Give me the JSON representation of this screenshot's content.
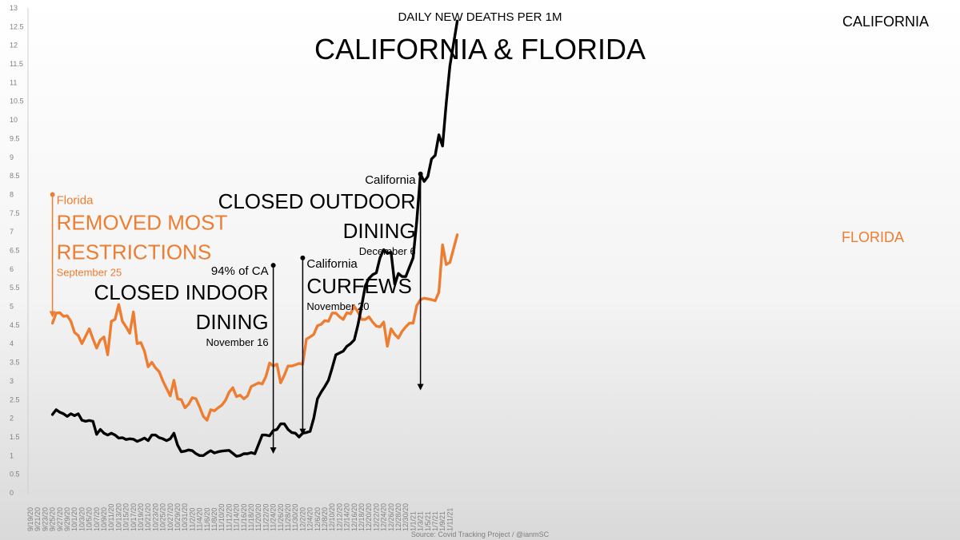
{
  "chart_data": {
    "type": "line",
    "title": "CALIFORNIA & FLORIDA",
    "subtitle": "DAILY NEW DEATHS PER 1M",
    "source": "Source: Covid Tracking Project / @ianmSC",
    "ylim": [
      0,
      13
    ],
    "y_ticks": [
      "0",
      "0.5",
      "1",
      "1.5",
      "2",
      "2.5",
      "3",
      "3.5",
      "4",
      "4.5",
      "5",
      "5.5",
      "6",
      "6.5",
      "7",
      "7.5",
      "8",
      "8.5",
      "9",
      "9.5",
      "10",
      "10.5",
      "11",
      "11.5",
      "12",
      "12.5",
      "13"
    ],
    "x_ticks": [
      "9/19/20",
      "9/21/20",
      "9/23/20",
      "9/25/20",
      "9/27/20",
      "9/29/20",
      "10/1/20",
      "10/3/20",
      "10/5/20",
      "10/7/20",
      "10/9/20",
      "10/11/20",
      "10/13/20",
      "10/15/20",
      "10/17/20",
      "10/19/20",
      "10/21/20",
      "10/23/20",
      "10/25/20",
      "10/27/20",
      "10/29/20",
      "10/31/20",
      "11/2/20",
      "11/4/20",
      "11/6/20",
      "11/8/20",
      "11/10/20",
      "11/12/20",
      "11/14/20",
      "11/16/20",
      "11/18/20",
      "11/20/20",
      "11/22/20",
      "11/24/20",
      "11/26/20",
      "11/28/20",
      "11/30/20",
      "12/2/20",
      "12/4/20",
      "12/6/20",
      "12/8/20",
      "12/10/20",
      "12/12/20",
      "12/14/20",
      "12/16/20",
      "12/18/20",
      "12/20/20",
      "12/22/20",
      "12/24/20",
      "12/26/20",
      "12/28/20",
      "12/30/20",
      "1/1/21",
      "1/3/21",
      "1/5/21",
      "1/7/21",
      "1/9/21",
      "1/11/21"
    ],
    "colors": {
      "california": "#000000",
      "florida": "#ed7d31"
    },
    "series": [
      {
        "name": "CALIFORNIA",
        "start_index": 6,
        "values": [
          2.1,
          2.23,
          2.16,
          2.12,
          2.05,
          2.12,
          2.07,
          2.12,
          1.95,
          1.92,
          1.94,
          1.92,
          1.57,
          1.7,
          1.6,
          1.55,
          1.6,
          1.55,
          1.47,
          1.48,
          1.43,
          1.45,
          1.44,
          1.38,
          1.42,
          1.47,
          1.4,
          1.55,
          1.55,
          1.48,
          1.45,
          1.4,
          1.45,
          1.6,
          1.28,
          1.1,
          1.12,
          1.15,
          1.13,
          1.05,
          1.0,
          1.0,
          1.07,
          1.13,
          1.07,
          1.1,
          1.12,
          1.13,
          1.14,
          1.06,
          0.98,
          1.0,
          1.05,
          1.05,
          1.08,
          1.05,
          1.3,
          1.55,
          1.55,
          1.53,
          1.67,
          1.7,
          1.85,
          1.85,
          1.7,
          1.62,
          1.6,
          1.5,
          1.6,
          1.62,
          1.65,
          2.0,
          2.52,
          2.7,
          2.85,
          3.02,
          3.35,
          3.7,
          3.75,
          3.8,
          3.93,
          4.0,
          4.1,
          4.5,
          5.0,
          5.55,
          5.75,
          5.85,
          5.9,
          6.3,
          6.52,
          6.42,
          6.45,
          5.6,
          5.88,
          5.8,
          5.8,
          6.05,
          6.3,
          7.3,
          8.55,
          8.35,
          8.48,
          8.95,
          9.05,
          9.6,
          9.3,
          10.45,
          11.45,
          12.05,
          12.65
        ]
      },
      {
        "name": "FLORIDA",
        "start_index": 6,
        "values": [
          4.55,
          4.82,
          4.83,
          4.73,
          4.75,
          4.6,
          4.3,
          4.22,
          4.0,
          4.2,
          4.4,
          4.13,
          3.88,
          4.1,
          4.18,
          3.7,
          4.6,
          4.65,
          5.05,
          4.6,
          4.45,
          4.28,
          4.85,
          4.0,
          4.03,
          3.8,
          3.38,
          3.5,
          3.35,
          3.25,
          3.0,
          2.8,
          2.6,
          3.02,
          2.52,
          2.5,
          2.28,
          2.38,
          2.55,
          2.52,
          2.3,
          2.05,
          1.95,
          2.23,
          2.2,
          2.28,
          2.35,
          2.48,
          2.7,
          2.82,
          2.58,
          2.62,
          2.52,
          2.6,
          2.85,
          2.9,
          2.95,
          2.92,
          3.12,
          3.48,
          3.4,
          3.45,
          2.95,
          3.15,
          3.4,
          3.4,
          3.43,
          3.47,
          3.45,
          4.12,
          4.18,
          4.25,
          4.48,
          4.52,
          4.62,
          4.6,
          4.82,
          4.82,
          4.72,
          4.65,
          4.83,
          4.8,
          5.0,
          4.85,
          4.65,
          4.65,
          4.72,
          4.58,
          4.47,
          4.45,
          4.58,
          3.93,
          4.4,
          4.25,
          4.15,
          4.33,
          4.45,
          4.55,
          4.55,
          5.02,
          5.18,
          5.22,
          5.2,
          5.18,
          5.15,
          5.38,
          6.65,
          6.12,
          6.18,
          6.55,
          6.92
        ]
      }
    ],
    "series_labels": {
      "california": "CALIFORNIA",
      "florida": "FLORIDA"
    },
    "annotations": [
      {
        "id": "florida-restrictions",
        "color": "#ed7d31",
        "arrow_index": 6,
        "arrow_from_y": 8.0,
        "arrow_to_y": 4.7,
        "who": "Florida",
        "headline": [
          "REMOVED MOST",
          "RESTRICTIONS"
        ],
        "date": "September 25"
      },
      {
        "id": "indoor-dining",
        "color": "#000000",
        "arrow_index": 66,
        "arrow_from_y": 6.1,
        "arrow_to_y": 1.05,
        "who": "94% of CA",
        "headline": [
          "CLOSED INDOOR",
          "DINING"
        ],
        "date": "November 16"
      },
      {
        "id": "curfews",
        "color": "#000000",
        "arrow_index": 74,
        "arrow_from_y": 6.3,
        "arrow_to_y": 1.55,
        "who": "California",
        "headline": [
          "CURFEWS"
        ],
        "date": "November 20"
      },
      {
        "id": "outdoor-dining",
        "color": "#000000",
        "arrow_index": 106,
        "arrow_from_y": 8.55,
        "arrow_to_y": 2.75,
        "who": "California",
        "headline": [
          "CLOSED OUTDOOR",
          "DINING"
        ],
        "date": "December 6"
      }
    ],
    "grid": false,
    "legend": "none"
  }
}
